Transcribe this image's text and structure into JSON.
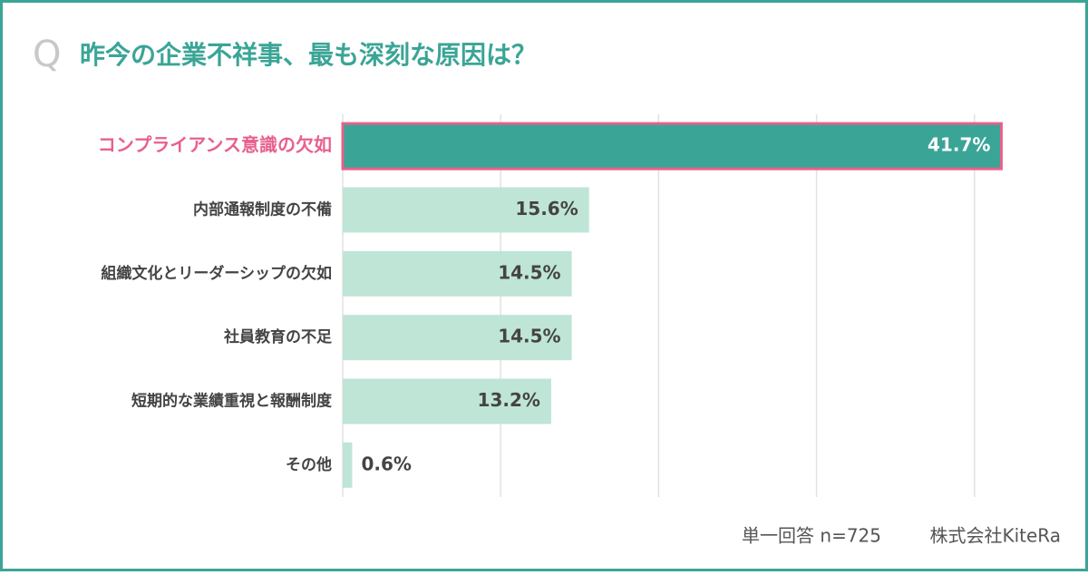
{
  "chart_data": {
    "type": "bar",
    "orientation": "horizontal",
    "q_mark": "Q",
    "title": "昨今の企業不祥事、最も深刻な原因は？",
    "categories": [
      "コンプライアンス意識の欠如",
      "内部通報制度の不備",
      "組織文化とリーダーシップの欠如",
      "社員教育の不足",
      "短期的な業績重視と報酬制度",
      "その他"
    ],
    "values": [
      41.7,
      15.6,
      14.5,
      14.5,
      13.2,
      0.6
    ],
    "value_labels": [
      "41.7%",
      "15.6%",
      "14.5%",
      "14.5%",
      "13.2%",
      "0.6%"
    ],
    "colors": [
      "#3aa596",
      "#bfe5d7",
      "#bfe5d7",
      "#bfe5d7",
      "#bfe5d7",
      "#bfe5d7"
    ],
    "highlight": 0,
    "highlight_color": "#e8608c",
    "xlim": [
      0,
      46
    ],
    "xticks": [
      0,
      10,
      20,
      30,
      40
    ],
    "grid": true,
    "note": "単一回答 n=725",
    "source": "株式会社KiteRa"
  }
}
